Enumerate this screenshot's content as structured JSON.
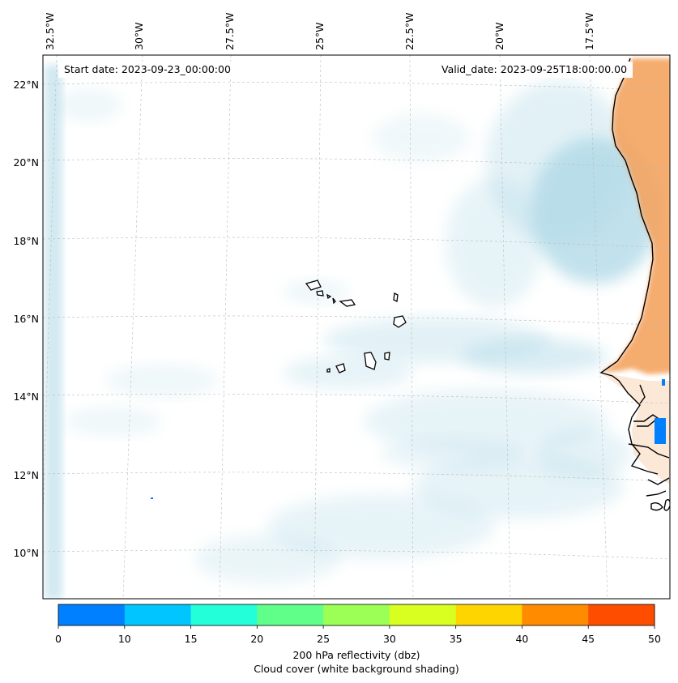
{
  "map": {
    "region": "Eastern North Atlantic, Cape Verde Islands and West African coast",
    "longitude_labels": [
      "32.5°W",
      "30°W",
      "27.5°W",
      "25°W",
      "22.5°W",
      "20°W",
      "17.5°W"
    ],
    "latitude_labels": [
      "22°N",
      "20°N",
      "18°N",
      "16°N",
      "14°N",
      "12°N",
      "10°N"
    ],
    "start_date": "Start date: 2023-09-23_00:00:00",
    "valid_date": "Valid_date: 2023-09-25T18:00:00.00",
    "colors": {
      "cloud_shading": "#add8e6",
      "land_shading": "#f4a460",
      "coastline": "#000000",
      "gridline": "#bbbbbb",
      "reflectivity_patch": "#0080ff"
    }
  },
  "colorbar": {
    "ticks": [
      "0",
      "10",
      "15",
      "20",
      "25",
      "30",
      "35",
      "40",
      "45",
      "50"
    ],
    "colors": [
      "#0080ff",
      "#00c5ff",
      "#23ffd9",
      "#5fff8a",
      "#9cff55",
      "#d8ff1f",
      "#ffd500",
      "#ff8c00",
      "#ff4d00"
    ],
    "label": "200 hPa reflectivity (dbz)",
    "sublabel": "Cloud cover (white background shading)"
  }
}
